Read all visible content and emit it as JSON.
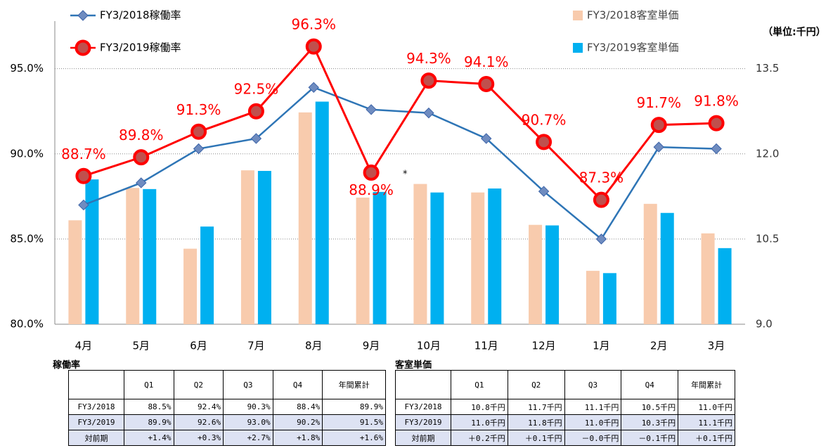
{
  "chart_data": {
    "type": "combo",
    "categories": [
      "4月",
      "5月",
      "6月",
      "7月",
      "8月",
      "9月",
      "10月",
      "11月",
      "12月",
      "1月",
      "2月",
      "3月"
    ],
    "series": [
      {
        "name": "FY3/2018客室単価",
        "type": "bar",
        "axis": "y2",
        "color": "#f8cbad",
        "values": [
          10.83,
          11.4,
          10.33,
          11.71,
          12.73,
          11.23,
          11.47,
          11.32,
          10.75,
          9.94,
          11.12,
          10.6
        ]
      },
      {
        "name": "FY3/2019客室単価",
        "type": "bar",
        "axis": "y2",
        "color": "#00b0f0",
        "values": [
          11.55,
          11.38,
          10.72,
          11.7,
          12.92,
          11.33,
          11.32,
          11.39,
          10.74,
          9.9,
          10.96,
          10.34
        ]
      },
      {
        "name": "FY3/2018稼働率",
        "type": "line",
        "color": "#2e75b6",
        "values": [
          87.0,
          88.3,
          90.3,
          90.9,
          93.9,
          92.6,
          92.4,
          90.9,
          87.8,
          85.0,
          90.4,
          90.3
        ]
      },
      {
        "name": "FY3/2019稼働率",
        "type": "line",
        "color": "#ff0000",
        "values": [
          88.7,
          89.8,
          91.3,
          92.5,
          96.3,
          88.9,
          94.3,
          94.1,
          90.7,
          87.3,
          91.7,
          91.8
        ],
        "value_labels": [
          "88.7%",
          "89.8%",
          "91.3%",
          "92.5%",
          "96.3%",
          "88.9%",
          "94.3%",
          "94.1%",
          "90.7%",
          "87.3%",
          "91.7%",
          "91.8%"
        ]
      }
    ],
    "ylim": [
      80,
      98
    ],
    "yticks": [
      {
        "value": 80,
        "label": "80.0%"
      },
      {
        "value": 85,
        "label": "85.0%"
      },
      {
        "value": 90,
        "label": "90.0%"
      },
      {
        "value": 95,
        "label": "95.0%"
      }
    ],
    "y2lim": [
      9.0,
      14.4
    ],
    "y2ticks": [
      {
        "value": 9,
        "label": "9.0"
      },
      10.5,
      {
        "value": 12,
        "label": "12.0"
      },
      13.5
    ],
    "y2_label": "（単位:千円）",
    "annotation": "*",
    "grid": true
  },
  "tables": [
    {
      "title": "稼働率",
      "header": [
        "Q1",
        "Q2",
        "Q3",
        "Q4",
        "年間累計"
      ],
      "rows": [
        [
          "FY3/2018",
          "88.5%",
          "92.4%",
          "90.3%",
          "88.4%",
          "89.9%"
        ],
        [
          "FY3/2019",
          "89.9%",
          "92.6%",
          "93.0%",
          "90.2%",
          "91.5%"
        ],
        [
          "対前期",
          "+1.4%",
          "+0.3%",
          "+2.7%",
          "+1.8%",
          "+1.6%"
        ]
      ]
    },
    {
      "title": "客室単価",
      "header": [
        "Q1",
        "Q2",
        "Q3",
        "Q4",
        "年間累計"
      ],
      "rows": [
        [
          "FY3/2018",
          "10.8千円",
          "11.7千円",
          "11.1千円",
          "10.5千円",
          "11.0千円"
        ],
        [
          "FY3/2019",
          "11.0千円",
          "11.8千円",
          "11.0千円",
          "10.3千円",
          "11.1千円"
        ],
        [
          "対前期",
          "＋0.2千円",
          "＋0.1千円",
          "－0.0千円",
          "－0.1千円",
          "＋0.1千円"
        ]
      ]
    }
  ]
}
